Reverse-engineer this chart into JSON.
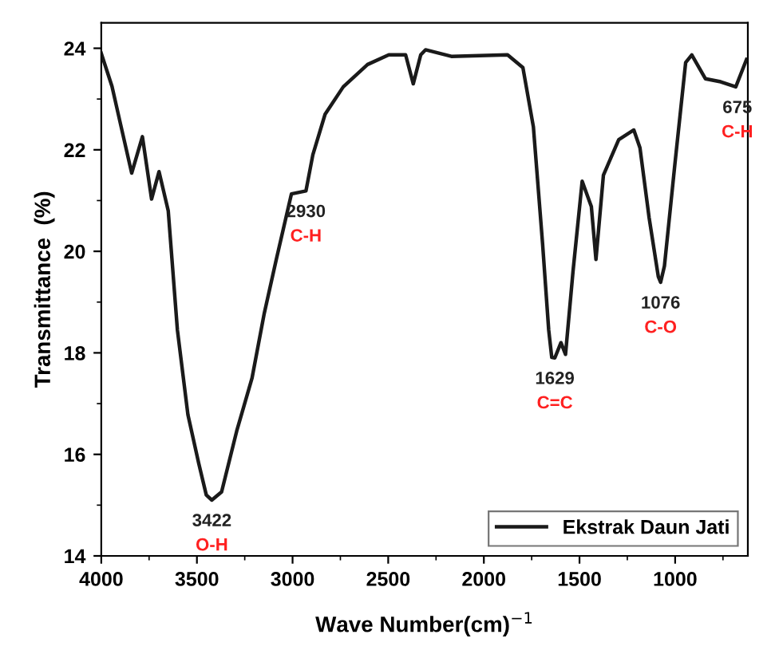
{
  "chart_data": {
    "type": "line",
    "xlabel": "Wave Number(cm)$^{−1}$",
    "ylabel": "Transmittance  (%)",
    "xlim": [
      4000,
      620
    ],
    "ylim": [
      14,
      24.5
    ],
    "xticks": [
      4000,
      3500,
      3000,
      2500,
      2000,
      1500,
      1000
    ],
    "yticks": [
      14,
      16,
      18,
      20,
      22,
      24
    ],
    "grid": false,
    "legend": "bottom right",
    "marker": "none",
    "line_style": "solid",
    "series": [
      {
        "name": "Ekstrak Daun Jati",
        "color": "#1a1a1a",
        "x": [
          4000,
          3944,
          3905,
          3841,
          3785,
          3737,
          3698,
          3650,
          3602,
          3547,
          3491,
          3451,
          3422,
          3371,
          3292,
          3212,
          3149,
          3085,
          3006,
          2930,
          2894,
          2830,
          2735,
          2608,
          2497,
          2409,
          2369,
          2330,
          2305,
          2170,
          1876,
          1796,
          1741,
          1693,
          1661,
          1645,
          1629,
          1597,
          1573,
          1534,
          1486,
          1438,
          1414,
          1375,
          1295,
          1216,
          1184,
          1136,
          1088,
          1076,
          1056,
          1001,
          945,
          913,
          842,
          762,
          683,
          627
        ],
        "values": [
          23.9,
          23.25,
          22.6,
          21.54,
          22.26,
          21.03,
          21.57,
          20.8,
          18.45,
          16.78,
          15.83,
          15.2,
          15.1,
          15.26,
          16.46,
          17.5,
          18.76,
          19.84,
          21.13,
          21.19,
          21.9,
          22.7,
          23.24,
          23.68,
          23.87,
          23.87,
          23.3,
          23.87,
          23.97,
          23.84,
          23.87,
          23.62,
          22.45,
          20.15,
          18.45,
          17.91,
          17.9,
          18.2,
          17.97,
          19.6,
          21.38,
          20.88,
          19.84,
          21.5,
          22.2,
          22.39,
          22.04,
          20.66,
          19.5,
          19.39,
          19.71,
          21.73,
          23.72,
          23.87,
          23.4,
          23.34,
          23.24,
          23.78
        ]
      }
    ],
    "annotations": [
      {
        "text": "3422",
        "x": 3422,
        "y": 15.1
      },
      {
        "text": "O-H",
        "x": 3422,
        "y": 15.1
      },
      {
        "text": "2930",
        "x": 2930,
        "y": 21.19
      },
      {
        "text": "C-H",
        "x": 2930,
        "y": 21.19
      },
      {
        "text": "1629",
        "x": 1629,
        "y": 17.9
      },
      {
        "text": "C=C",
        "x": 1629,
        "y": 17.9
      },
      {
        "text": "1076",
        "x": 1076,
        "y": 19.39
      },
      {
        "text": "C-O",
        "x": 1076,
        "y": 19.39
      },
      {
        "text": "675",
        "x": 675,
        "y": 23.24
      },
      {
        "text": "C-H",
        "x": 675,
        "y": 23.24
      }
    ]
  }
}
